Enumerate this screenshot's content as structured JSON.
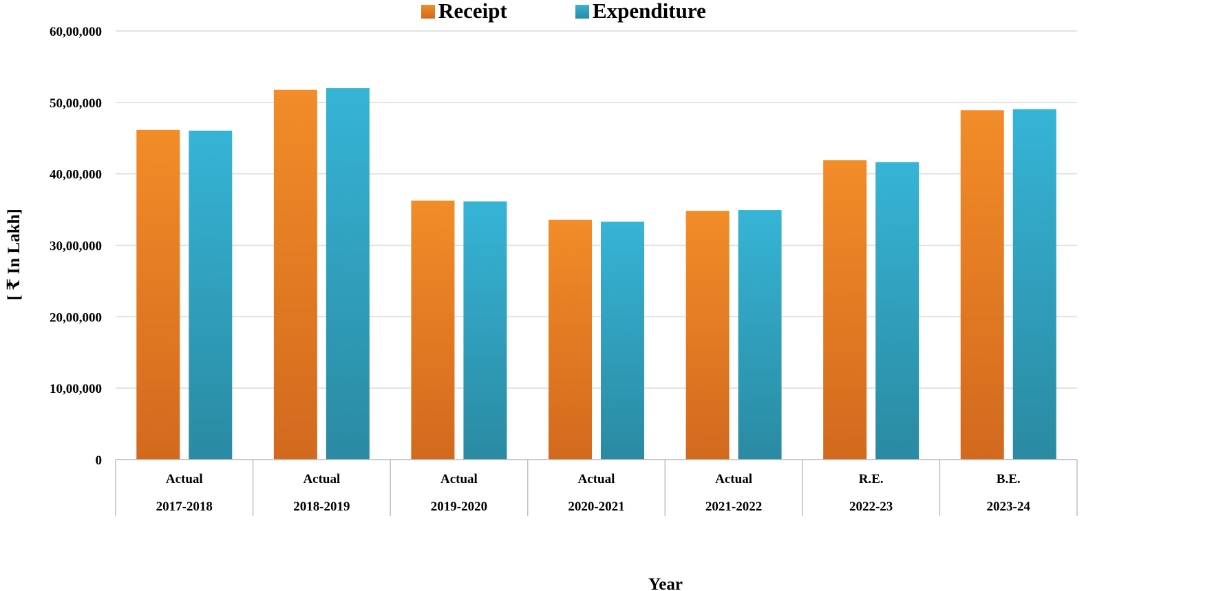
{
  "chart_data": {
    "type": "bar",
    "title": "",
    "xlabel": "Year",
    "ylabel": "[ ₹ In Lakh]",
    "ylim": [
      0,
      6000000
    ],
    "yticks": [
      {
        "value": 0,
        "label": "0"
      },
      {
        "value": 1000000,
        "label": "10,00,000"
      },
      {
        "value": 2000000,
        "label": "20,00,000"
      },
      {
        "value": 3000000,
        "label": "30,00,000"
      },
      {
        "value": 4000000,
        "label": "40,00,000"
      },
      {
        "value": 5000000,
        "label": "50,00,000"
      },
      {
        "value": 6000000,
        "label": "60,00,000"
      }
    ],
    "categories": [
      {
        "type": "Actual",
        "year": "2017-2018"
      },
      {
        "type": "Actual",
        "year": "2018-2019"
      },
      {
        "type": "Actual",
        "year": "2019-2020"
      },
      {
        "type": "Actual",
        "year": "2020-2021"
      },
      {
        "type": "Actual",
        "year": "2021-2022"
      },
      {
        "type": "R.E.",
        "year": "2022-23"
      },
      {
        "type": "B.E.",
        "year": "2023-24"
      }
    ],
    "series": [
      {
        "name": "Receipt",
        "color": "#F28C28",
        "color_dark": "#D2691E",
        "values": [
          4615000,
          5175000,
          3625000,
          3355000,
          3480000,
          4190000,
          4890000
        ]
      },
      {
        "name": "Expenditure",
        "color": "#36B4D6",
        "color_dark": "#2A8AA2",
        "values": [
          4605000,
          5200000,
          3615000,
          3330000,
          3495000,
          4165000,
          4905000
        ]
      }
    ],
    "grid": true,
    "legend_position": "top-center"
  }
}
